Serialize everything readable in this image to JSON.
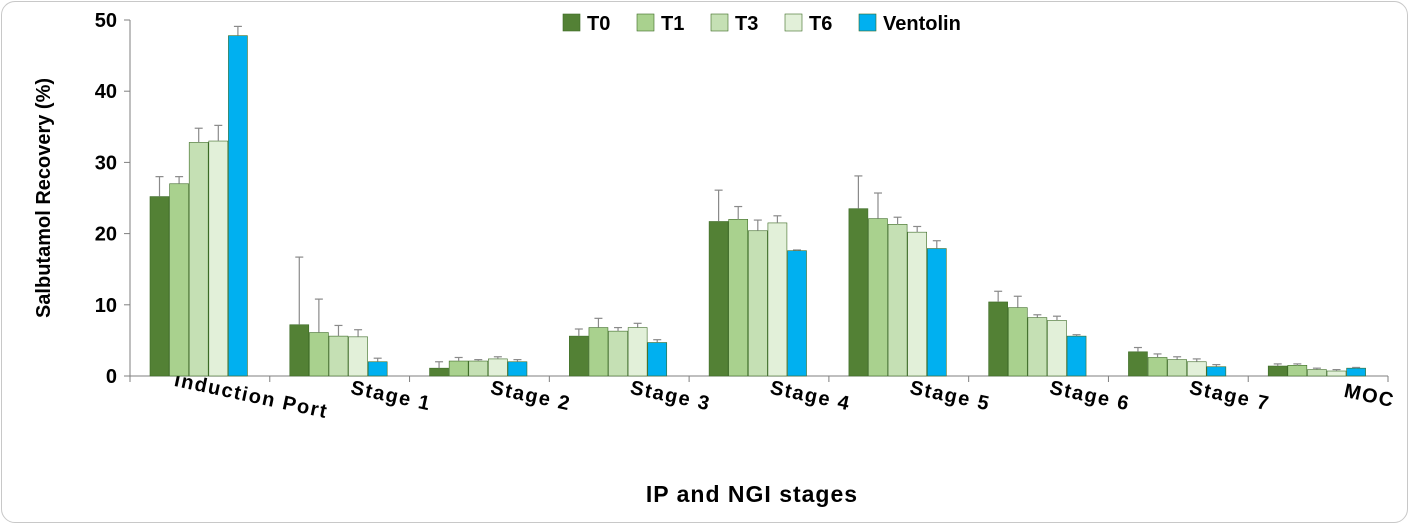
{
  "chart_data": {
    "type": "bar",
    "title": "",
    "xlabel": "IP and NGI stages",
    "ylabel": "Salbutamol Recovery (%)",
    "ylim": [
      0,
      50
    ],
    "yticks": [
      0,
      10,
      20,
      30,
      40,
      50
    ],
    "grid": false,
    "legend_position": "top",
    "categories": [
      "Induction Port",
      "Stage 1",
      "Stage 2",
      "Stage 3",
      "Stage 4",
      "Stage 5",
      "Stage 6",
      "Stage 7",
      "MOC"
    ],
    "series": [
      {
        "name": "T0",
        "color": "#538135",
        "values": [
          25.2,
          7.2,
          1.1,
          5.6,
          21.7,
          23.5,
          10.4,
          3.4,
          1.4
        ],
        "errors": [
          2.8,
          9.5,
          0.9,
          1.0,
          4.4,
          4.6,
          1.5,
          0.6,
          0.3
        ]
      },
      {
        "name": "T1",
        "color": "#a9d18e",
        "values": [
          27.0,
          6.1,
          2.1,
          6.8,
          22.0,
          22.1,
          9.6,
          2.6,
          1.5
        ],
        "errors": [
          1.0,
          4.7,
          0.5,
          1.3,
          1.8,
          3.6,
          1.6,
          0.5,
          0.2
        ]
      },
      {
        "name": "T3",
        "color": "#c5e0b4",
        "values": [
          32.8,
          5.6,
          2.1,
          6.3,
          20.4,
          21.3,
          8.2,
          2.3,
          0.9
        ],
        "errors": [
          2.0,
          1.5,
          0.2,
          0.5,
          1.5,
          1.0,
          0.4,
          0.4,
          0.2
        ]
      },
      {
        "name": "T6",
        "color": "#e2f0d9",
        "values": [
          33.0,
          5.5,
          2.4,
          6.8,
          21.5,
          20.2,
          7.8,
          2.0,
          0.7
        ],
        "errors": [
          2.2,
          1.0,
          0.3,
          0.6,
          1.0,
          0.8,
          0.6,
          0.4,
          0.2
        ]
      },
      {
        "name": "Ventolin",
        "color": "#00b0f0",
        "values": [
          47.8,
          2.0,
          2.0,
          4.7,
          17.6,
          17.9,
          5.6,
          1.3,
          1.1
        ],
        "errors": [
          1.3,
          0.5,
          0.3,
          0.4,
          0.1,
          1.1,
          0.2,
          0.3,
          0.1
        ]
      }
    ]
  }
}
